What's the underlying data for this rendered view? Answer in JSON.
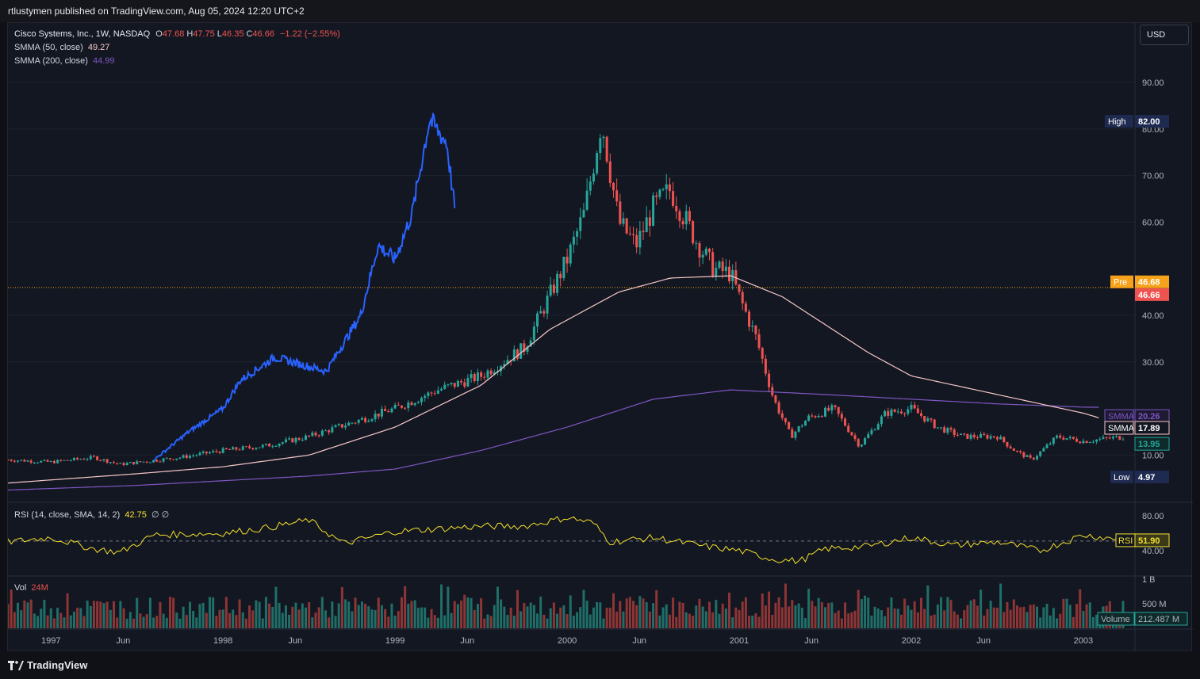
{
  "header": {
    "publisher_line": "rtlustymen published on TradingView.com, Aug 05, 2024 12:20 UTC+2"
  },
  "legend": {
    "symbol": "Cisco Systems, Inc., 1W, NASDAQ",
    "ohlc": [
      {
        "k": "O",
        "v": "47.68"
      },
      {
        "k": "H",
        "v": "47.75"
      },
      {
        "k": "L",
        "v": "46.35"
      },
      {
        "k": "C",
        "v": "46.66"
      }
    ],
    "change": "−1.22 (−2.55%)",
    "smma50_label": "SMMA (50, close)",
    "smma50_value": "49.27",
    "smma200_label": "SMMA (200, close)",
    "smma200_value": "44.99",
    "rsi_label": "RSI (14, close, SMA, 14, 2)",
    "rsi_value": "42.75",
    "rsi_extra": "∅ ∅",
    "vol_label": "Vol",
    "vol_value": "24M"
  },
  "currency_button": "USD",
  "colors": {
    "up": "#26a69a",
    "down": "#ef5350",
    "overlay": "#2962ff",
    "smma50": "#f8c8c8",
    "smma200": "#7e57c2",
    "rsi": "#f5e02c",
    "pre": "#f7a21b",
    "background": "#131722"
  },
  "chart_data": {
    "type": "candlestick",
    "title": "Cisco Systems, Inc., 1W, NASDAQ",
    "x_tick_labels": [
      "1997",
      "Jun",
      "1998",
      "Jun",
      "1999",
      "Jun",
      "2000",
      "Jun",
      "2001",
      "Jun",
      "2002",
      "Jun",
      "2003"
    ],
    "price_axis": {
      "ticks": [
        "90.00",
        "80.00",
        "70.00",
        "60.00",
        "40.00",
        "30.00",
        "10.00"
      ],
      "ylim": [
        0,
        95
      ]
    },
    "series": [
      {
        "name": "Cisco Systems, Inc.",
        "kind": "candles",
        "anchors": [
          [
            1996.75,
            9
          ],
          [
            1997.0,
            8.5
          ],
          [
            1997.25,
            9.5
          ],
          [
            1997.4,
            8
          ],
          [
            1997.75,
            9.5
          ],
          [
            1998.0,
            11
          ],
          [
            1998.25,
            12
          ],
          [
            1998.5,
            14
          ],
          [
            1998.75,
            17
          ],
          [
            1999.0,
            20
          ],
          [
            1999.25,
            24
          ],
          [
            1999.5,
            27
          ],
          [
            1999.75,
            33
          ],
          [
            2000.0,
            52
          ],
          [
            2000.1,
            62
          ],
          [
            2000.2,
            82
          ],
          [
            2000.3,
            60
          ],
          [
            2000.4,
            55
          ],
          [
            2000.5,
            63
          ],
          [
            2000.6,
            67
          ],
          [
            2000.75,
            56
          ],
          [
            2000.85,
            50
          ],
          [
            2000.95,
            49
          ],
          [
            2001.0,
            44
          ],
          [
            2001.1,
            35
          ],
          [
            2001.2,
            22
          ],
          [
            2001.3,
            14
          ],
          [
            2001.4,
            18
          ],
          [
            2001.55,
            20
          ],
          [
            2001.7,
            12
          ],
          [
            2001.85,
            19
          ],
          [
            2002.0,
            20
          ],
          [
            2002.15,
            16
          ],
          [
            2002.3,
            14
          ],
          [
            2002.5,
            14
          ],
          [
            2002.6,
            11
          ],
          [
            2002.7,
            9
          ],
          [
            2002.85,
            14
          ],
          [
            2003.0,
            13
          ],
          [
            2003.25,
            14
          ]
        ]
      },
      {
        "name": "Overlay",
        "kind": "line",
        "anchors": [
          [
            1997.6,
            9
          ],
          [
            1997.8,
            15
          ],
          [
            1998.0,
            20
          ],
          [
            1998.1,
            26
          ],
          [
            1998.3,
            31
          ],
          [
            1998.5,
            29
          ],
          [
            1998.6,
            28
          ],
          [
            1998.8,
            40
          ],
          [
            1998.9,
            55
          ],
          [
            1999.0,
            52
          ],
          [
            1999.1,
            62
          ],
          [
            1999.2,
            82
          ],
          [
            1999.3,
            77
          ],
          [
            1999.35,
            62
          ]
        ]
      },
      {
        "name": "SMMA (50, close)",
        "kind": "line",
        "anchors": [
          [
            1996.75,
            4
          ],
          [
            1997.5,
            6
          ],
          [
            1998.0,
            7.5
          ],
          [
            1998.5,
            10
          ],
          [
            1999.0,
            16
          ],
          [
            1999.5,
            25
          ],
          [
            1999.9,
            37
          ],
          [
            2000.3,
            45
          ],
          [
            2000.6,
            48
          ],
          [
            2000.95,
            48.5
          ],
          [
            2001.25,
            44
          ],
          [
            2001.5,
            38
          ],
          [
            2001.75,
            32
          ],
          [
            2002.0,
            27
          ],
          [
            2002.5,
            23
          ],
          [
            2003.0,
            19
          ],
          [
            2003.1,
            17.89
          ]
        ]
      },
      {
        "name": "SMMA (200, close)",
        "kind": "line",
        "anchors": [
          [
            1996.75,
            2.5
          ],
          [
            1997.5,
            3.5
          ],
          [
            1998.0,
            4.5
          ],
          [
            1998.5,
            5.5
          ],
          [
            1999.0,
            7
          ],
          [
            1999.5,
            11
          ],
          [
            2000.0,
            16
          ],
          [
            2000.5,
            22
          ],
          [
            2000.95,
            24
          ],
          [
            2001.5,
            23
          ],
          [
            2002.0,
            22
          ],
          [
            2002.5,
            21
          ],
          [
            2003.0,
            20.3
          ],
          [
            2003.1,
            20.26
          ]
        ]
      }
    ],
    "price_labels": [
      {
        "tag": "High",
        "value": "82.00"
      },
      {
        "tag": "Pre",
        "value": "46.68"
      },
      {
        "tag": "",
        "value": "46.66"
      },
      {
        "tag": "SMMA",
        "value": "20.26"
      },
      {
        "tag": "SMMA",
        "value": "17.89"
      },
      {
        "tag": "",
        "value": "13.95"
      },
      {
        "tag": "Low",
        "value": "4.97"
      }
    ],
    "rsi": {
      "ticks": [
        "80.00",
        "40.00"
      ],
      "tag": "RSI",
      "value": "51.90",
      "anchors": [
        [
          1996.75,
          50
        ],
        [
          1997.0,
          55
        ],
        [
          1997.25,
          42
        ],
        [
          1997.4,
          38
        ],
        [
          1997.6,
          58
        ],
        [
          1998.0,
          60
        ],
        [
          1998.25,
          66
        ],
        [
          1998.5,
          75
        ],
        [
          1998.7,
          48
        ],
        [
          1999.0,
          62
        ],
        [
          1999.25,
          65
        ],
        [
          1999.5,
          68
        ],
        [
          1999.75,
          68
        ],
        [
          2000.0,
          78
        ],
        [
          2000.15,
          72
        ],
        [
          2000.25,
          50
        ],
        [
          2000.5,
          55
        ],
        [
          2000.8,
          45
        ],
        [
          2001.0,
          40
        ],
        [
          2001.2,
          30
        ],
        [
          2001.35,
          28
        ],
        [
          2001.5,
          42
        ],
        [
          2001.75,
          45
        ],
        [
          2002.0,
          55
        ],
        [
          2002.25,
          46
        ],
        [
          2002.5,
          50
        ],
        [
          2002.75,
          40
        ],
        [
          2003.0,
          58
        ],
        [
          2003.25,
          51.9
        ]
      ]
    },
    "volume": {
      "ticks": [
        "1 B",
        "500 M"
      ],
      "tag": "Volume",
      "value": "212.487 M"
    }
  }
}
